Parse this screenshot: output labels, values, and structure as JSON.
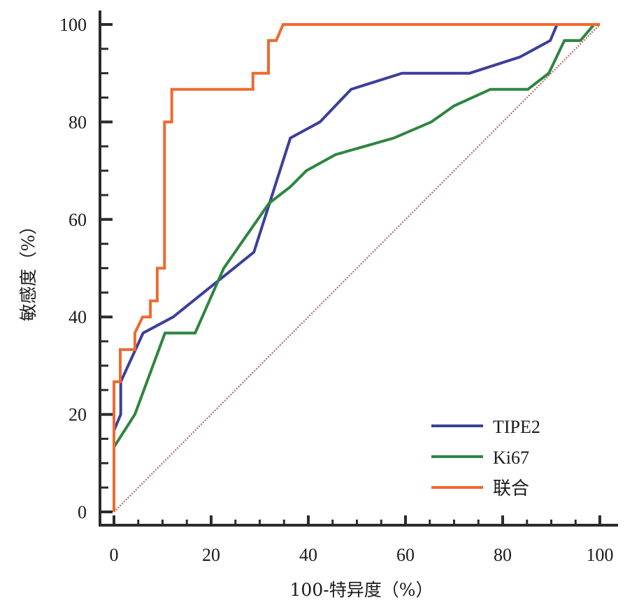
{
  "chart_data": {
    "type": "line",
    "title": "",
    "xlabel": "100-特异度（%）",
    "ylabel": "敏感度（%）",
    "xlim": [
      0,
      100
    ],
    "ylim": [
      0,
      100
    ],
    "x_ticks": [
      0,
      20,
      40,
      60,
      80,
      100
    ],
    "y_ticks": [
      0,
      20,
      40,
      60,
      80,
      100
    ],
    "x_tick_labels": [
      "0",
      "20",
      "40",
      "60",
      "80",
      "100"
    ],
    "y_tick_labels": [
      "0",
      "20",
      "40",
      "60",
      "80",
      "100"
    ],
    "minor_tick_step": 5,
    "grid": false,
    "legend_position": "bottom-right",
    "reference_line": {
      "name": "diagonal",
      "x": [
        0,
        100
      ],
      "y": [
        0,
        100
      ],
      "style": "dotted",
      "color": "#b46a6a"
    },
    "series": [
      {
        "name": "TIPE2",
        "color": "#3b3f9a",
        "x": [
          0,
          0,
          1.4,
          1.4,
          6,
          12.2,
          28.8,
          36.3,
          42.4,
          48.8,
          59.3,
          73.2,
          83.5,
          89.8,
          91.2,
          100
        ],
        "y": [
          0,
          16.7,
          20,
          26.7,
          36.7,
          40,
          53.3,
          76.7,
          80,
          86.7,
          90,
          90,
          93.3,
          96.7,
          100,
          100
        ]
      },
      {
        "name": "Ki67",
        "color": "#2e8540",
        "x": [
          0,
          0,
          4.3,
          10.5,
          16.7,
          22.6,
          31.9,
          36.3,
          39.6,
          45.6,
          57.6,
          65.3,
          70,
          77.5,
          85.2,
          89.5,
          92.7,
          96,
          98.8,
          100
        ],
        "y": [
          0,
          13.3,
          20,
          36.7,
          36.7,
          50,
          63.3,
          66.7,
          70,
          73.3,
          76.7,
          80,
          83.3,
          86.7,
          86.7,
          90,
          96.7,
          96.7,
          100,
          100
        ]
      },
      {
        "name": "联合",
        "color": "#ee6a30",
        "x": [
          0,
          0,
          1.3,
          1.3,
          4.3,
          4.3,
          5.9,
          7.5,
          7.5,
          8.9,
          8.9,
          10.4,
          10.4,
          11.9,
          11.9,
          28.6,
          28.6,
          31.8,
          31.8,
          33.4,
          34.8,
          100
        ],
        "y": [
          0,
          26.7,
          26.7,
          33.3,
          33.3,
          36.7,
          40,
          40,
          43.3,
          43.3,
          50,
          50,
          80,
          80,
          86.7,
          86.7,
          90,
          90,
          96.7,
          96.7,
          100,
          100
        ]
      }
    ],
    "axis_color": "#2b2b2b"
  }
}
